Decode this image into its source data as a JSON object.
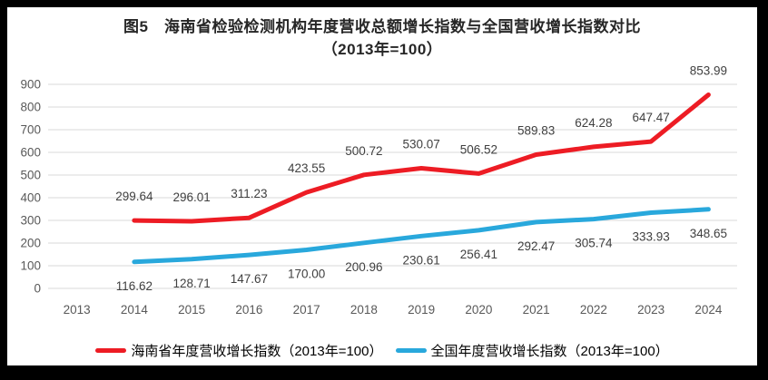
{
  "window": {
    "frame_color": "#000000",
    "canvas_color": "#ffffff"
  },
  "title": {
    "line1": "图5　海南省检验检测机构年度营收总额增长指数与全国营收增长指数对比",
    "line2": "（2013年=100）"
  },
  "chart_data": {
    "type": "line",
    "title": "图5 海南省检验检测机构年度营收总额增长指数与全国营收增长指数对比（2013年=100）",
    "categories": [
      "2013",
      "2014",
      "2015",
      "2016",
      "2017",
      "2018",
      "2019",
      "2020",
      "2021",
      "2022",
      "2023",
      "2024"
    ],
    "series": [
      {
        "name": "海南省年度营收增长指数（2013年=100）",
        "color": "#ED1C24",
        "label_position": "above",
        "values": [
          null,
          299.64,
          296.01,
          311.23,
          423.55,
          500.72,
          530.07,
          506.52,
          589.83,
          624.28,
          647.47,
          853.99
        ]
      },
      {
        "name": "全国年度营收增长指数（2013年=100）",
        "color": "#29A8DC",
        "label_position": "below",
        "values": [
          null,
          116.62,
          128.71,
          147.67,
          170.0,
          200.96,
          230.61,
          256.41,
          292.47,
          305.74,
          333.93,
          348.65
        ]
      }
    ],
    "ylim": [
      0,
      900
    ],
    "ytick_interval": 100,
    "yticks": [
      0,
      100,
      200,
      300,
      400,
      500,
      600,
      700,
      800,
      900
    ],
    "grid": true,
    "legend_position": "bottom",
    "label_decimals": 2,
    "colors": {
      "gridline": "#D9D9D9",
      "axis_text": "#595959",
      "data_label": "#404040"
    }
  }
}
